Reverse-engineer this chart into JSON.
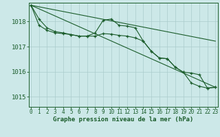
{
  "background_color": "#cce8e8",
  "grid_color": "#aacccc",
  "line_color": "#1a5c2a",
  "xlabel": "Graphe pression niveau de la mer (hPa)",
  "xticks": [
    0,
    1,
    2,
    3,
    4,
    5,
    6,
    7,
    8,
    9,
    10,
    11,
    12,
    13,
    14,
    15,
    16,
    17,
    18,
    19,
    20,
    21,
    22,
    23
  ],
  "yticks": [
    1015,
    1016,
    1017,
    1018
  ],
  "ylim": [
    1014.6,
    1018.75
  ],
  "xlim": [
    -0.3,
    23.3
  ],
  "series1_x": [
    0,
    1,
    2,
    3,
    4,
    5,
    6,
    7,
    8,
    9,
    10,
    11,
    12,
    13,
    14,
    15,
    16,
    17,
    18,
    19,
    20,
    21,
    22,
    23
  ],
  "series1_y": [
    1018.65,
    1018.1,
    1017.75,
    1017.6,
    1017.55,
    1017.48,
    1017.42,
    1017.42,
    1017.55,
    1018.05,
    1018.1,
    1017.85,
    1017.82,
    1017.75,
    1017.22,
    1016.82,
    1016.55,
    1016.52,
    1016.18,
    1015.98,
    1015.55,
    1015.42,
    1015.35,
    1015.38
  ],
  "series2_x": [
    0,
    1,
    2,
    3,
    4,
    5,
    6,
    7,
    8,
    9,
    10,
    11,
    12,
    13,
    14,
    15,
    16,
    17,
    18,
    19,
    20,
    21,
    22,
    23
  ],
  "series2_y": [
    1018.65,
    1017.85,
    1017.65,
    1017.55,
    1017.52,
    1017.48,
    1017.42,
    1017.42,
    1017.42,
    1017.52,
    1017.5,
    1017.45,
    1017.42,
    1017.35,
    1017.22,
    1016.82,
    1016.55,
    1016.52,
    1016.18,
    1015.98,
    1015.95,
    1015.88,
    1015.35,
    1015.38
  ],
  "trend1_x": [
    0,
    23
  ],
  "trend1_y": [
    1018.65,
    1017.22
  ],
  "trend2_x": [
    0,
    23
  ],
  "trend2_y": [
    1018.65,
    1015.38
  ],
  "tick_fontsize": 5.5,
  "ylabel_fontsize": 6.5,
  "xlabel_fontsize": 6.5
}
